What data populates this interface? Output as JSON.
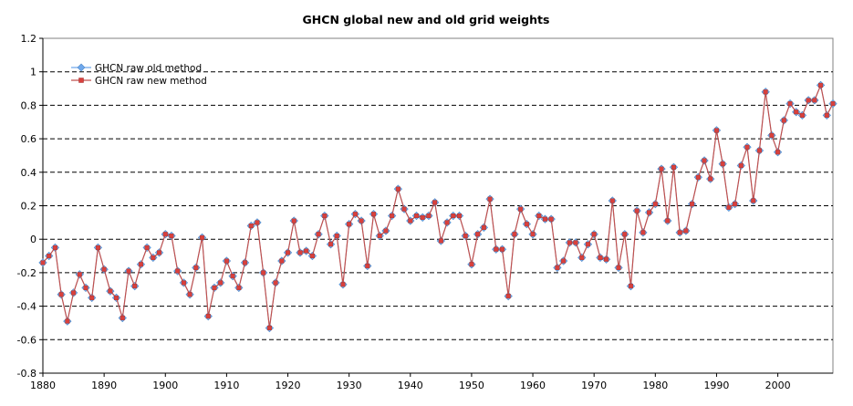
{
  "chart_data": {
    "type": "line",
    "title": "GHCN global new and old grid weights",
    "xlabel": "",
    "ylabel": "",
    "xlim": [
      1880,
      2009
    ],
    "ylim": [
      -0.8,
      1.2
    ],
    "xticks": [
      1880,
      1890,
      1900,
      1910,
      1920,
      1930,
      1940,
      1950,
      1960,
      1970,
      1980,
      1990,
      2000
    ],
    "yticks": [
      -0.8,
      -0.6,
      -0.4,
      -0.2,
      0,
      0.2,
      0.4,
      0.6,
      0.8,
      1,
      1.2
    ],
    "xtick_labels": [
      "1880",
      "1890",
      "1900",
      "1910",
      "1920",
      "1930",
      "1940",
      "1950",
      "1960",
      "1970",
      "1980",
      "1990",
      "2000"
    ],
    "ytick_labels": [
      "-0.8",
      "-0.6",
      "-0.4",
      "-0.2",
      "0",
      "0.2",
      "0.4",
      "0.6",
      "0.8",
      "1",
      "1.2"
    ],
    "grid": "horizontal dashed",
    "legend_position": "top-left",
    "x": [
      1880,
      1881,
      1882,
      1883,
      1884,
      1885,
      1886,
      1887,
      1888,
      1889,
      1890,
      1891,
      1892,
      1893,
      1894,
      1895,
      1896,
      1897,
      1898,
      1899,
      1900,
      1901,
      1902,
      1903,
      1904,
      1905,
      1906,
      1907,
      1908,
      1909,
      1910,
      1911,
      1912,
      1913,
      1914,
      1915,
      1916,
      1917,
      1918,
      1919,
      1920,
      1921,
      1922,
      1923,
      1924,
      1925,
      1926,
      1927,
      1928,
      1929,
      1930,
      1931,
      1932,
      1933,
      1934,
      1935,
      1936,
      1937,
      1938,
      1939,
      1940,
      1941,
      1942,
      1943,
      1944,
      1945,
      1946,
      1947,
      1948,
      1949,
      1950,
      1951,
      1952,
      1953,
      1954,
      1955,
      1956,
      1957,
      1958,
      1959,
      1960,
      1961,
      1962,
      1963,
      1964,
      1965,
      1966,
      1967,
      1968,
      1969,
      1970,
      1971,
      1972,
      1973,
      1974,
      1975,
      1976,
      1977,
      1978,
      1979,
      1980,
      1981,
      1982,
      1983,
      1984,
      1985,
      1986,
      1987,
      1988,
      1989,
      1990,
      1991,
      1992,
      1993,
      1994,
      1995,
      1996,
      1997,
      1998,
      1999,
      2000,
      2001,
      2002,
      2003,
      2004,
      2005,
      2006,
      2007,
      2008,
      2009
    ],
    "series": [
      {
        "name": "GHCN raw old method",
        "color": "#6fa8ec",
        "marker": "diamond",
        "values": [
          -0.14,
          -0.1,
          -0.05,
          -0.33,
          -0.49,
          -0.32,
          -0.21,
          -0.29,
          -0.35,
          -0.05,
          -0.18,
          -0.31,
          -0.35,
          -0.47,
          -0.19,
          -0.28,
          -0.15,
          -0.05,
          -0.11,
          -0.08,
          0.03,
          0.02,
          -0.19,
          -0.26,
          -0.33,
          -0.17,
          0.01,
          -0.46,
          -0.29,
          -0.26,
          -0.13,
          -0.22,
          -0.29,
          -0.14,
          0.08,
          0.1,
          -0.2,
          -0.53,
          -0.26,
          -0.13,
          -0.08,
          0.11,
          -0.08,
          -0.07,
          -0.1,
          0.03,
          0.14,
          -0.03,
          0.02,
          -0.27,
          0.09,
          0.15,
          0.11,
          -0.16,
          0.15,
          0.02,
          0.05,
          0.14,
          0.3,
          0.18,
          0.11,
          0.14,
          0.13,
          0.14,
          0.22,
          -0.01,
          0.1,
          0.14,
          0.14,
          0.02,
          -0.15,
          0.03,
          0.07,
          0.24,
          -0.06,
          -0.06,
          -0.34,
          0.03,
          0.18,
          0.09,
          0.03,
          0.14,
          0.12,
          0.12,
          -0.17,
          -0.13,
          -0.02,
          -0.02,
          -0.11,
          -0.03,
          0.03,
          -0.11,
          -0.12,
          0.23,
          -0.17,
          0.03,
          -0.28,
          0.17,
          0.04,
          0.16,
          0.21,
          0.42,
          0.11,
          0.43,
          0.04,
          0.05,
          0.21,
          0.37,
          0.47,
          0.36,
          0.65,
          0.45,
          0.19,
          0.21,
          0.44,
          0.55,
          0.23,
          0.53,
          0.88,
          0.62,
          0.52,
          0.71,
          0.81,
          0.76,
          0.74,
          0.83,
          0.83,
          0.92,
          0.74,
          0.81
        ]
      },
      {
        "name": "GHCN raw new method",
        "color": "#c0504d",
        "marker": "square",
        "values": [
          -0.14,
          -0.1,
          -0.05,
          -0.33,
          -0.49,
          -0.32,
          -0.21,
          -0.29,
          -0.35,
          -0.05,
          -0.18,
          -0.31,
          -0.35,
          -0.47,
          -0.19,
          -0.28,
          -0.15,
          -0.05,
          -0.11,
          -0.08,
          0.03,
          0.02,
          -0.19,
          -0.26,
          -0.33,
          -0.17,
          0.01,
          -0.46,
          -0.29,
          -0.26,
          -0.13,
          -0.22,
          -0.29,
          -0.14,
          0.08,
          0.1,
          -0.2,
          -0.53,
          -0.26,
          -0.13,
          -0.08,
          0.11,
          -0.08,
          -0.07,
          -0.1,
          0.03,
          0.14,
          -0.03,
          0.02,
          -0.27,
          0.09,
          0.15,
          0.11,
          -0.16,
          0.15,
          0.02,
          0.05,
          0.14,
          0.3,
          0.18,
          0.11,
          0.14,
          0.13,
          0.14,
          0.22,
          -0.01,
          0.1,
          0.14,
          0.14,
          0.02,
          -0.15,
          0.03,
          0.07,
          0.24,
          -0.06,
          -0.06,
          -0.34,
          0.03,
          0.18,
          0.09,
          0.03,
          0.14,
          0.12,
          0.12,
          -0.17,
          -0.13,
          -0.02,
          -0.02,
          -0.11,
          -0.03,
          0.03,
          -0.11,
          -0.12,
          0.23,
          -0.17,
          0.03,
          -0.28,
          0.17,
          0.04,
          0.16,
          0.21,
          0.42,
          0.11,
          0.43,
          0.04,
          0.05,
          0.21,
          0.37,
          0.47,
          0.36,
          0.65,
          0.45,
          0.19,
          0.21,
          0.44,
          0.55,
          0.23,
          0.53,
          0.88,
          0.62,
          0.52,
          0.71,
          0.81,
          0.76,
          0.74,
          0.83,
          0.83,
          0.92,
          0.74,
          0.81
        ]
      }
    ]
  }
}
